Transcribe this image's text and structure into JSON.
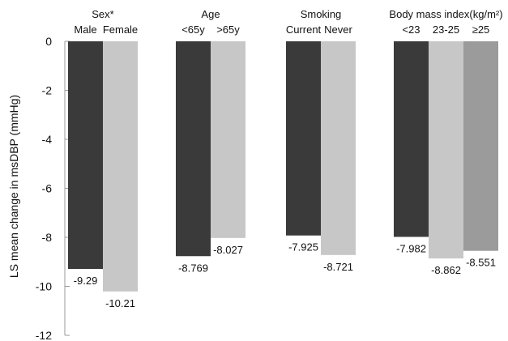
{
  "chart_data": {
    "type": "bar",
    "ylabel": "LS mean change in msDBP (mmHg)",
    "ylim": [
      -12,
      0
    ],
    "yticks": [
      "0",
      "-2",
      "-4",
      "-6",
      "-8",
      "-10",
      "-12"
    ],
    "grid": false,
    "groups": [
      {
        "title": "Sex*",
        "bars": [
          {
            "label": "Male",
            "value": -9.29,
            "value_label": "-9.29",
            "color": "#3a3a3a"
          },
          {
            "label": "Female",
            "value": -10.21,
            "value_label": "-10.21",
            "color": "#c6c7c6"
          }
        ]
      },
      {
        "title": "Age",
        "bars": [
          {
            "label": "<65y",
            "value": -8.769,
            "value_label": "-8.769",
            "color": "#3a3a3a"
          },
          {
            "label": ">65y",
            "value": -8.027,
            "value_label": "-8.027",
            "color": "#c6c7c6"
          }
        ]
      },
      {
        "title": "Smoking",
        "bars": [
          {
            "label": "Current",
            "value": -7.925,
            "value_label": "-7.925",
            "color": "#3a3a3a"
          },
          {
            "label": "Never",
            "value": -8.721,
            "value_label": "-8.721",
            "color": "#c6c7c6"
          }
        ]
      },
      {
        "title": "Body mass index(kg/m²)",
        "bars": [
          {
            "label": "<23",
            "value": -7.982,
            "value_label": "-7.982",
            "color": "#3a3a3a"
          },
          {
            "label": "23-25",
            "value": -8.862,
            "value_label": "-8.862",
            "color": "#c6c7c6"
          },
          {
            "label": "≥25",
            "value": -8.551,
            "value_label": "-8.551",
            "color": "#9a9b9a"
          }
        ]
      }
    ]
  }
}
